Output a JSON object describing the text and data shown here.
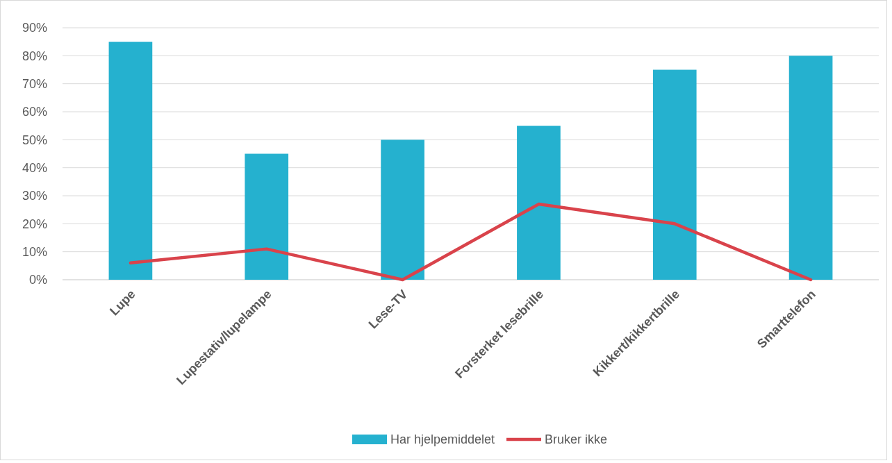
{
  "chart_data": {
    "type": "bar",
    "categories": [
      "Lupe",
      "Lupestativ/lupelampe",
      "Lese-TV",
      "Forsterket lesebrille",
      "Kikkert/kikkertbrille",
      "Smarttelefon"
    ],
    "series": [
      {
        "name": "Har hjelpemiddelet",
        "color": "#25b1cf",
        "values": [
          85,
          45,
          50,
          55,
          75,
          80
        ]
      },
      {
        "name": "Bruker ikke",
        "type": "line",
        "color": "#d9434b",
        "values": [
          6,
          11,
          0,
          27,
          20,
          0
        ]
      }
    ],
    "ylim": [
      0,
      90
    ],
    "yticks": [
      {
        "value": 0,
        "label": "0%"
      },
      {
        "value": 10,
        "label": "10%"
      },
      {
        "value": 20,
        "label": "20%"
      },
      {
        "value": 30,
        "label": "30%"
      },
      {
        "value": 40,
        "label": "40%"
      },
      {
        "value": 50,
        "label": "50%"
      },
      {
        "value": 60,
        "label": "60%"
      },
      {
        "value": 70,
        "label": "70%"
      },
      {
        "value": 80,
        "label": "80%"
      },
      {
        "value": 90,
        "label": "90%"
      }
    ],
    "grid": "y",
    "legend": "bottom",
    "marker": "none",
    "line_style": "solid"
  }
}
